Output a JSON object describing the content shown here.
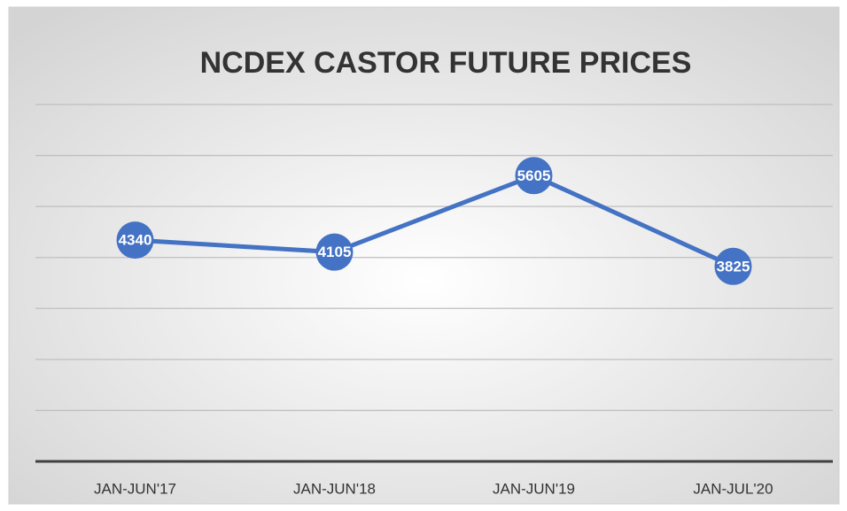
{
  "chart_data": {
    "type": "line",
    "title": "NCDEX CASTOR FUTURE PRICES",
    "categories": [
      "JAN-JUN'17",
      "JAN-JUN'18",
      "JAN-JUN'19",
      "JAN-JUL'20"
    ],
    "values": [
      4340,
      4105,
      5605,
      3825
    ],
    "color": "#4472c4",
    "ylim": [
      0,
      7000
    ],
    "yticks": [
      0,
      1000,
      2000,
      3000,
      4000,
      5000,
      6000,
      7000
    ],
    "grid": true
  }
}
